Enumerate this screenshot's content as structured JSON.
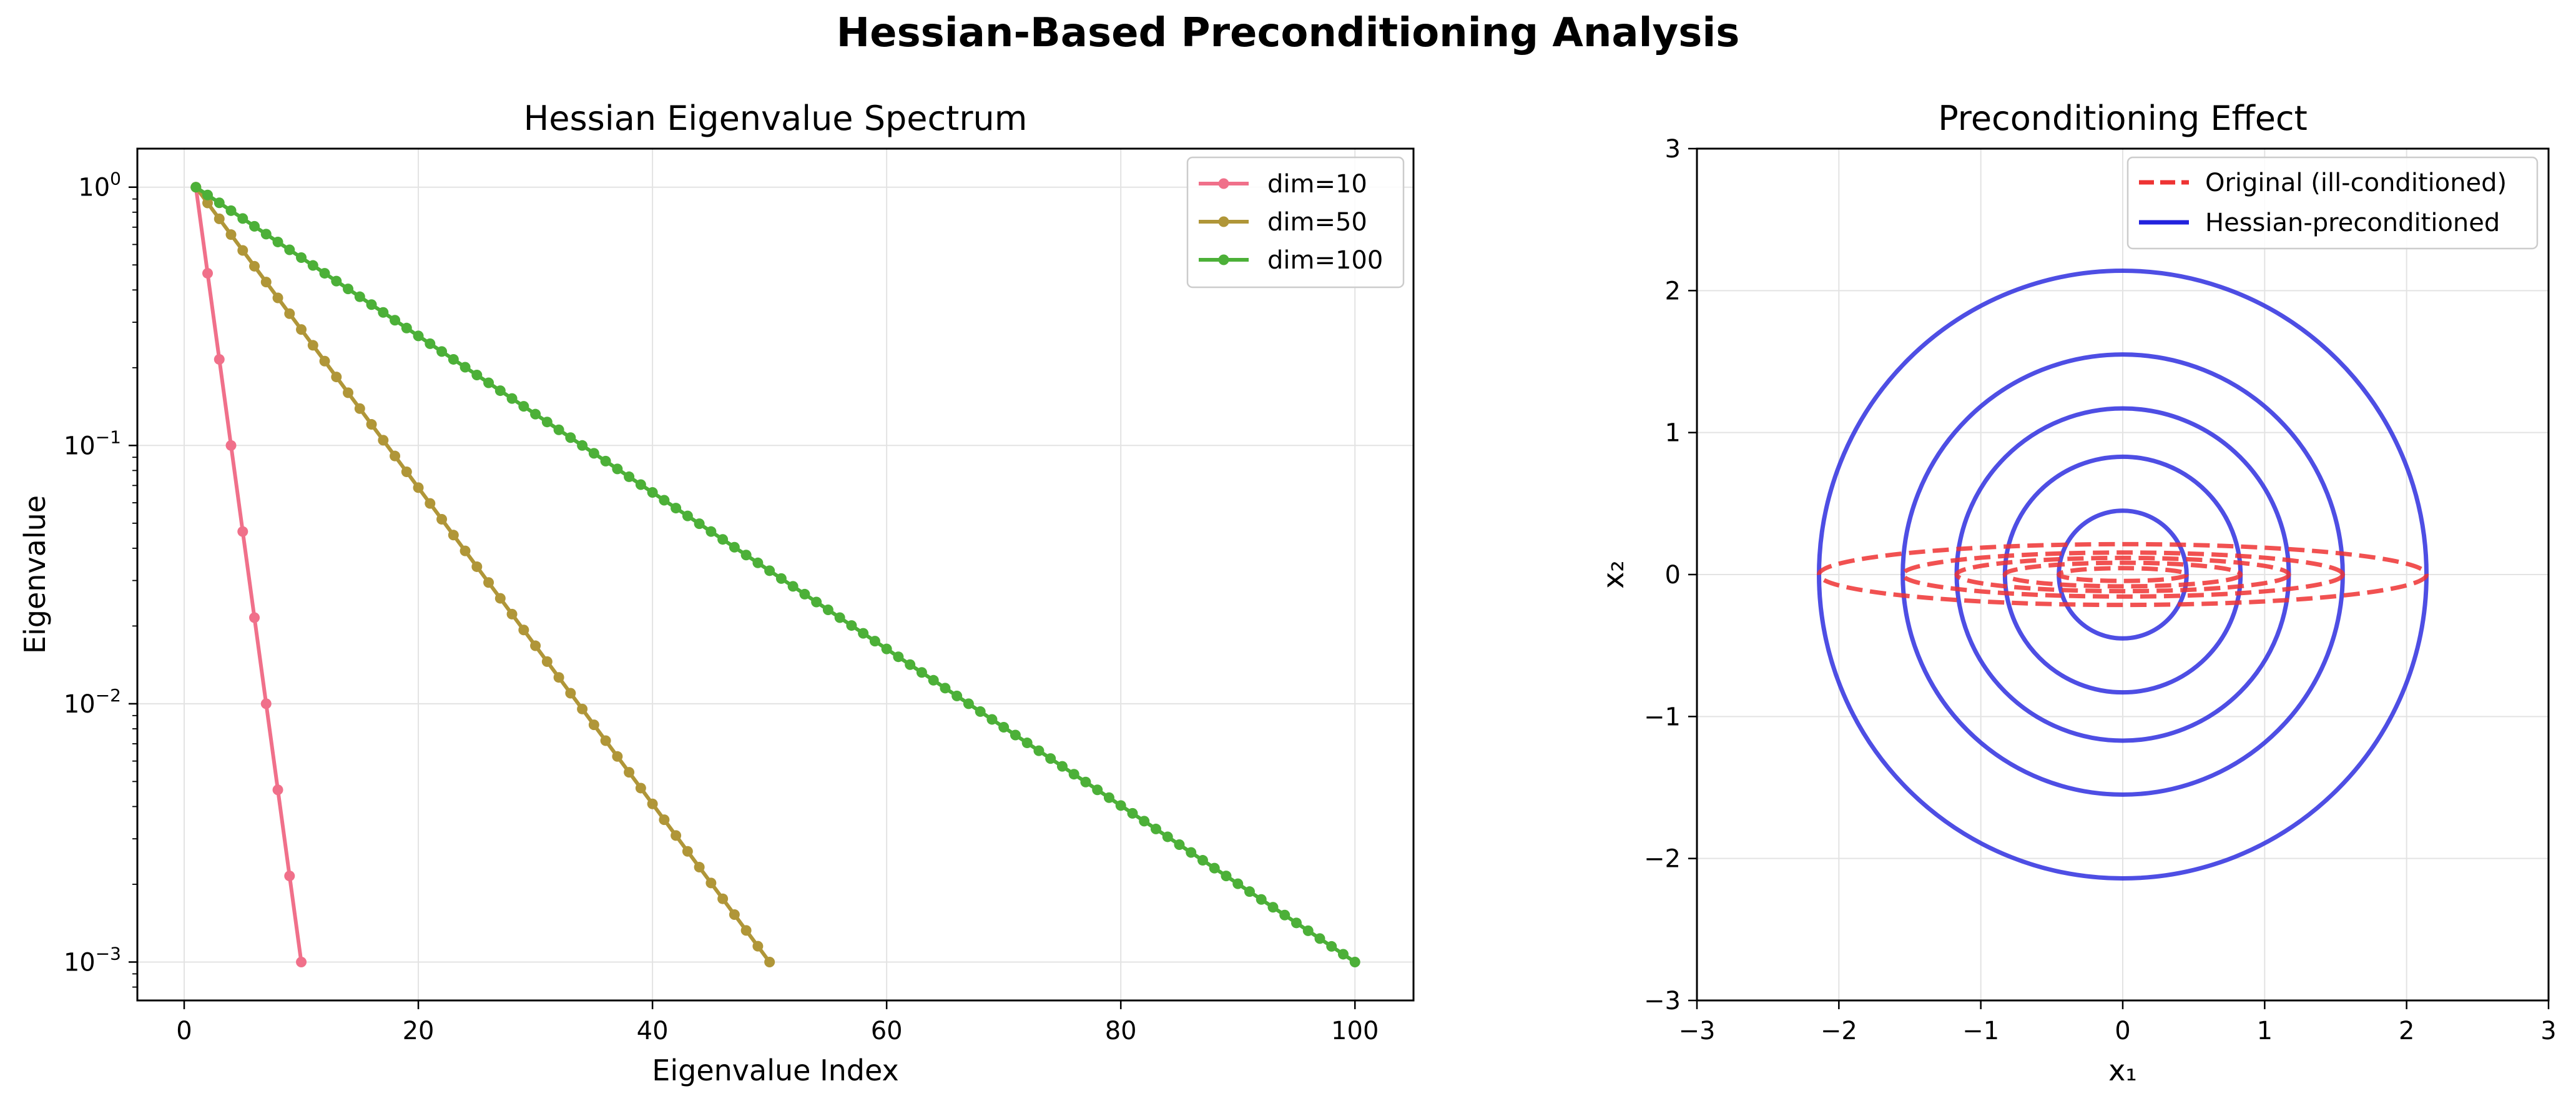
{
  "figure": {
    "title": "Hessian-Based Preconditioning Analysis"
  },
  "chart_data": [
    {
      "type": "line",
      "title": "Hessian Eigenvalue Spectrum",
      "xlabel": "Eigenvalue Index",
      "ylabel": "Eigenvalue",
      "xlim": [
        -4,
        105
      ],
      "ylim": [
        0.00071,
        1.41
      ],
      "yscale": "log",
      "xticks": [
        0,
        20,
        40,
        60,
        80,
        100
      ],
      "yticks": [
        {
          "value": 1,
          "base": "10",
          "exp": "0"
        },
        {
          "value": 0.1,
          "base": "10",
          "exp": "−1"
        },
        {
          "value": 0.01,
          "base": "10",
          "exp": "−2"
        },
        {
          "value": 0.001,
          "base": "10",
          "exp": "−3"
        }
      ],
      "grid": true,
      "legend": "top-right",
      "series": [
        {
          "name": "dim=10",
          "color": "#f0708a",
          "n": 10,
          "marker": "circle",
          "description": "log-spaced eigenvalues from 1 to 0.001 at indices 1..10"
        },
        {
          "name": "dim=50",
          "color": "#b09638",
          "n": 50,
          "marker": "circle",
          "description": "log-spaced eigenvalues from 1 to 0.001 at indices 1..50"
        },
        {
          "name": "dim=100",
          "color": "#4cb038",
          "n": 100,
          "marker": "circle",
          "description": "log-spaced eigenvalues from 1 to 0.001 at indices 1..100"
        }
      ]
    },
    {
      "type": "line",
      "title": "Preconditioning Effect",
      "xlabel": "x₁",
      "ylabel": "x₂",
      "xlim": [
        -3,
        3
      ],
      "ylim": [
        -3,
        3
      ],
      "xticks": [
        {
          "value": -3,
          "label": "−3"
        },
        {
          "value": -2,
          "label": "−2"
        },
        {
          "value": -1,
          "label": "−1"
        },
        {
          "value": 0,
          "label": "0"
        },
        {
          "value": 1,
          "label": "1"
        },
        {
          "value": 2,
          "label": "2"
        },
        {
          "value": 3,
          "label": "3"
        }
      ],
      "yticks": [
        {
          "value": -3,
          "label": "−3"
        },
        {
          "value": -2,
          "label": "−2"
        },
        {
          "value": -1,
          "label": "−1"
        },
        {
          "value": 0,
          "label": "0"
        },
        {
          "value": 1,
          "label": "1"
        },
        {
          "value": 2,
          "label": "2"
        },
        {
          "value": 3,
          "label": "3"
        }
      ],
      "grid": true,
      "legend": "top-right",
      "series": [
        {
          "name": "Original (ill-conditioned)",
          "color": "#ee3333",
          "line": "dashed",
          "ellipses": [
            {
              "rx": 2.14,
              "ry": 0.214
            },
            {
              "rx": 1.55,
              "ry": 0.155
            },
            {
              "rx": 1.17,
              "ry": 0.117
            },
            {
              "rx": 0.83,
              "ry": 0.083
            },
            {
              "rx": 0.45,
              "ry": 0.045
            }
          ]
        },
        {
          "name": "Hessian-preconditioned",
          "color": "#2222dd",
          "line": "solid",
          "circles": [
            2.14,
            1.55,
            1.17,
            0.83,
            0.45
          ]
        }
      ]
    }
  ]
}
